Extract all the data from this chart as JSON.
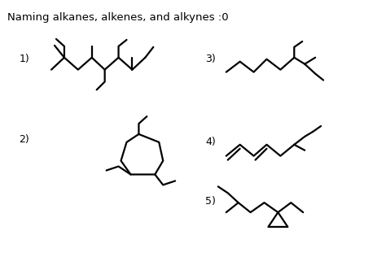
{
  "title": "Naming alkanes, alkenes, and alkynes :0",
  "bg_color": "#ffffff",
  "line_color": "#000000",
  "line_width": 1.6,
  "fig_w": 4.74,
  "fig_h": 3.16,
  "dpi": 100
}
